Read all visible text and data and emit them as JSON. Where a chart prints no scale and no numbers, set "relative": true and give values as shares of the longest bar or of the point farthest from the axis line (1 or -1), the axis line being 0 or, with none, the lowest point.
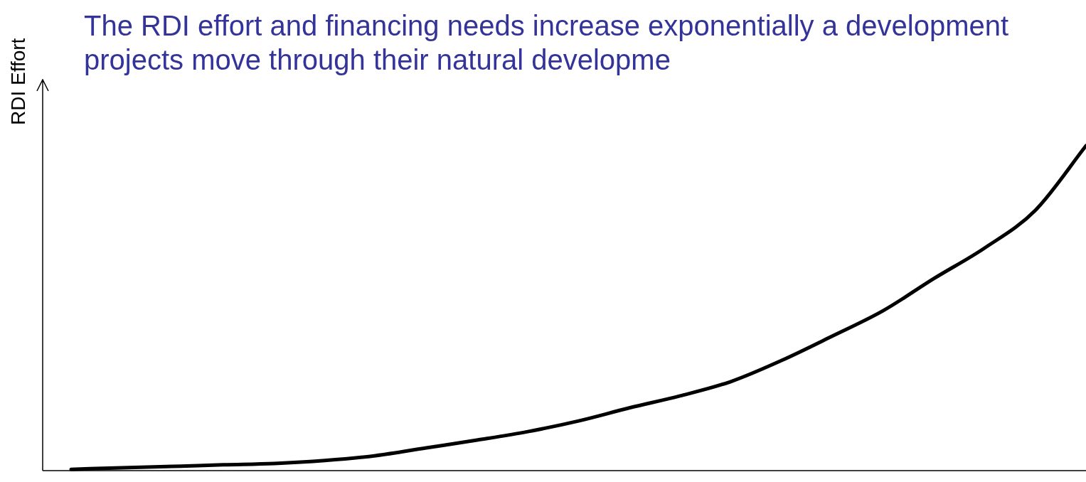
{
  "chart_data": {
    "type": "line",
    "title": "The RDI effort and financing needs increase exponentially a development projects move through their natural developme",
    "ylabel": "RDI Effort",
    "relative": true,
    "legend": false,
    "marker": "none",
    "line_style": "solid",
    "categories": [
      null,
      null,
      null,
      null,
      null,
      null,
      null,
      null,
      null,
      null,
      null,
      null,
      null,
      null,
      null,
      null,
      null,
      null,
      null,
      null,
      null
    ],
    "series": [
      {
        "color": "#000000",
        "values": [
          0.004,
          0.009,
          0.013,
          0.018,
          0.022,
          0.031,
          0.046,
          0.07,
          0.094,
          0.12,
          0.153,
          0.193,
          0.23,
          0.274,
          0.339,
          0.414,
          0.492,
          0.591,
          0.685,
          0.801,
          1
        ]
      }
    ]
  }
}
